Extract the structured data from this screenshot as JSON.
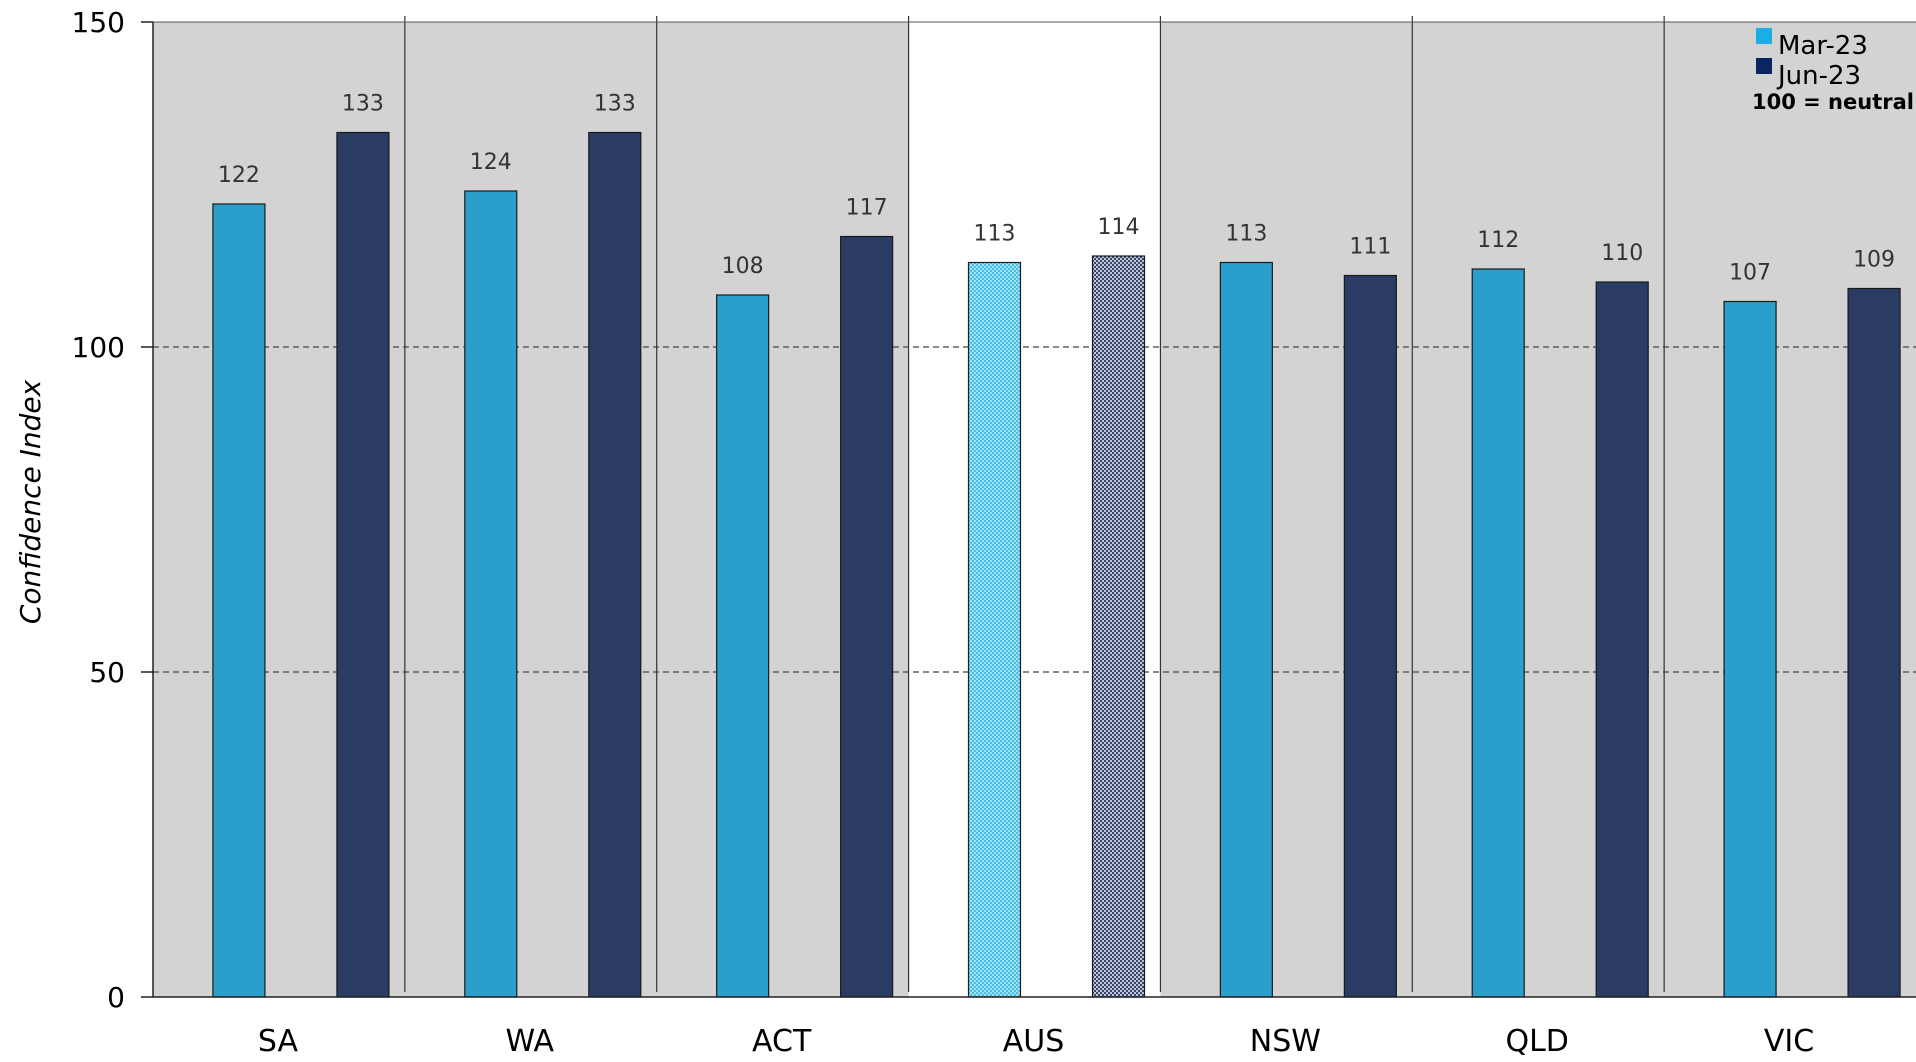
{
  "chart_data": {
    "type": "bar",
    "title": "",
    "xlabel": "",
    "ylabel": "Confidence Index",
    "ylim": [
      0,
      150
    ],
    "yticks": [
      0,
      50,
      100,
      150
    ],
    "grid": "dashed horizontal at 50 and 100",
    "legend_position": "top-right",
    "categories": [
      "SA",
      "WA",
      "ACT",
      "AUS",
      "NSW",
      "QLD",
      "VIC"
    ],
    "highlight_category": "AUS",
    "series": [
      {
        "name": "Mar-23",
        "color": "#2a9fcc",
        "legend_color": "#1aaee5",
        "values": [
          122,
          124,
          108,
          113,
          113,
          112,
          107
        ]
      },
      {
        "name": "Jun-23",
        "color": "#2b3c64",
        "legend_color": "#0b2560",
        "values": [
          133,
          133,
          117,
          114,
          111,
          110,
          109
        ]
      }
    ],
    "legend_note": "100 = neutral",
    "panel_color": "#d3d3d3"
  }
}
